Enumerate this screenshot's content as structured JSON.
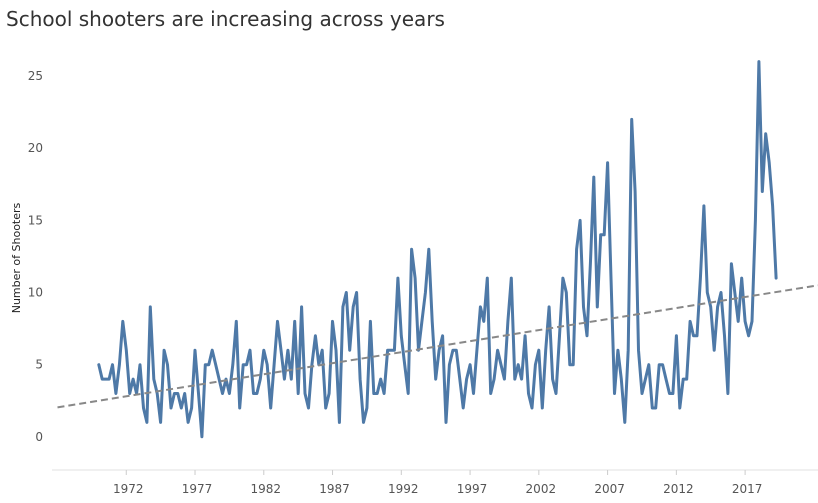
{
  "chart_data": {
    "type": "line",
    "title": "School shooters are increasing across years",
    "xlabel": "",
    "ylabel": "Number of Shooters",
    "xlim": [
      1966.6,
      1985.0
    ],
    "ylim": [
      -2.3,
      27.5
    ],
    "x_ticks": [
      1972,
      1977,
      1982,
      1987,
      1992,
      1997,
      2002,
      2007,
      2012,
      2017
    ],
    "y_ticks": [
      0,
      5,
      10,
      15,
      20,
      25
    ],
    "grid": false,
    "x_start": 1970.0,
    "x_step": 0.25,
    "series": [
      {
        "name": "",
        "color": "#4e79a7",
        "values": [
          5,
          4,
          4,
          4,
          5,
          3,
          5,
          8,
          6,
          3,
          4,
          3,
          5,
          2,
          1,
          9,
          4,
          3,
          1,
          6,
          5,
          2,
          3,
          3,
          2,
          3,
          1,
          2,
          6,
          3,
          0,
          5,
          5,
          6,
          5,
          4,
          3,
          4,
          3,
          5,
          8,
          2,
          5,
          5,
          6,
          3,
          3,
          4,
          6,
          5,
          2,
          5,
          8,
          6,
          4,
          6,
          4,
          8,
          3,
          9,
          3,
          2,
          5,
          7,
          5,
          6,
          2,
          3,
          8,
          6,
          1,
          9,
          10,
          6,
          9,
          10,
          4,
          1,
          2,
          8,
          3,
          3,
          4,
          3,
          6,
          6,
          6,
          11,
          7,
          5,
          3,
          13,
          11,
          6,
          8,
          10,
          13,
          8,
          4,
          6,
          7,
          1,
          5,
          6,
          6,
          4,
          2,
          4,
          5,
          3,
          6,
          9,
          8,
          11,
          3,
          4,
          6,
          5,
          4,
          8,
          11,
          4,
          5,
          4,
          7,
          3,
          2,
          5,
          6,
          2,
          6,
          9,
          4,
          3,
          7,
          11,
          10,
          5,
          5,
          13,
          15,
          9,
          7,
          12,
          18,
          9,
          14,
          14,
          19,
          11,
          3,
          6,
          4,
          1,
          6,
          22,
          17,
          6,
          3,
          4,
          5,
          2,
          2,
          5,
          5,
          4,
          3,
          3,
          7,
          2,
          4,
          4,
          8,
          7,
          7,
          11,
          16,
          10,
          9,
          6,
          9,
          10,
          7,
          3,
          12,
          10,
          8,
          11,
          8,
          7,
          8,
          15,
          26,
          17,
          21,
          19,
          16,
          11
        ]
      }
    ],
    "trendline": {
      "style": "dashed",
      "color": "#888888",
      "start": [
        1970.0,
        2.5
      ],
      "end": [
        2022.3,
        10.5
      ]
    }
  }
}
